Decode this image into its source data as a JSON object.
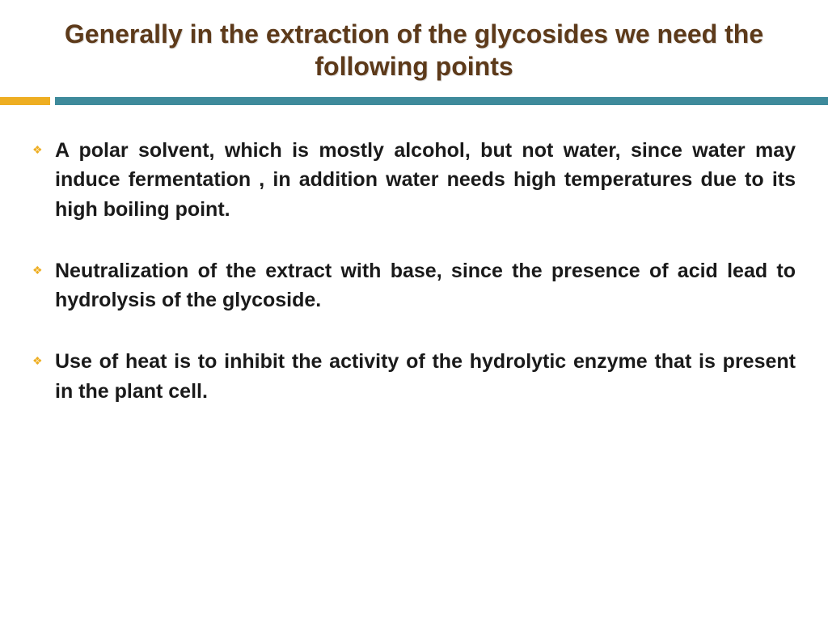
{
  "slide": {
    "title": "Generally in the extraction of the glycosides we need the following points",
    "title_color": "#5d3a1a",
    "title_fontsize": 32,
    "divider": {
      "accent_color": "#eeae22",
      "bar_color": "#3e8a9b",
      "accent_width": 62,
      "height": 10
    },
    "bullets": [
      {
        "marker": "❖",
        "text": "A polar solvent, which is mostly alcohol, but not water, since water may induce fermentation , in addition water needs high temperatures due to its high boiling point."
      },
      {
        "marker": "❖",
        "text": "Neutralization of the extract with base, since the presence of acid lead to hydrolysis of the glycoside."
      },
      {
        "marker": "❖",
        "text": "Use of heat is to inhibit the activity of the hydrolytic enzyme that is present in the plant cell."
      }
    ],
    "bullet_marker_color": "#eeae22",
    "body_fontsize": 25,
    "body_color": "#1a1a1a",
    "background_color": "#ffffff"
  }
}
